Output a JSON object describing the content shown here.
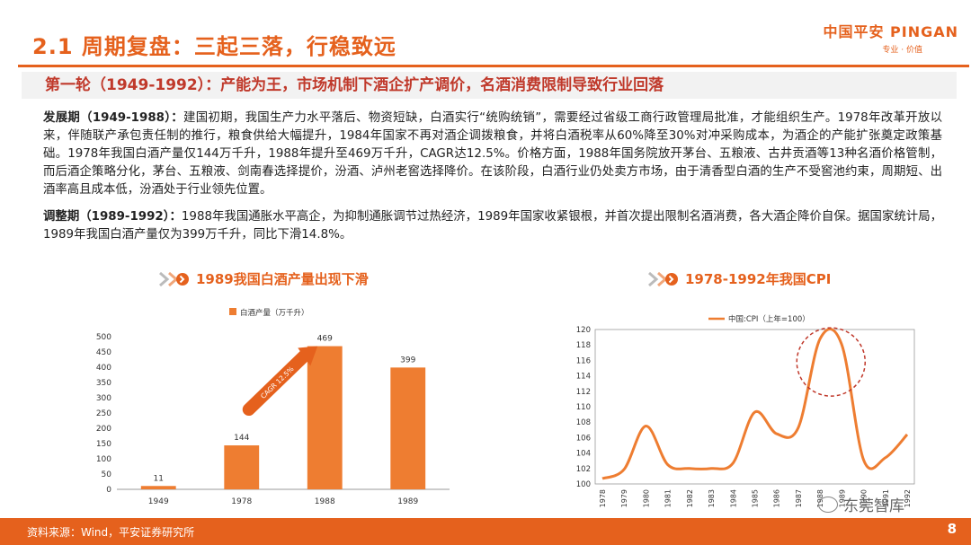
{
  "header": {
    "title": "2.1 周期复盘：三起三落，行稳致远",
    "logo_main": "中国平安 PINGAN",
    "logo_sub": "专业 · 价值"
  },
  "subheading": "第一轮（1949-1992）：产能为王，市场机制下酒企扩产调价，名酒消费限制导致行业回落",
  "paragraphs": {
    "p1_label": "发展期（1949-1988）：",
    "p1_text": "建国初期，我国生产力水平落后、物资短缺，白酒实行“统购统销”，需要经过省级工商行政管理局批准，才能组织生产。1978年改革开放以来，伴随联产承包责任制的推行，粮食供给大幅提升，1984年国家不再对酒企调拨粮食，并将白酒税率从60%降至30%对冲采购成本，为酒企的产能扩张奠定政策基础。1978年我国白酒产量仅144万千升，1988年提升至469万千升，CAGR达12.5%。价格方面，1988年国务院放开茅台、五粮液、古井贡酒等13种名酒价格管制，而后酒企策略分化，茅台、五粮液、剑南春选择提价，汾酒、泸州老窖选择降价。在该阶段，白酒行业仍处卖方市场，由于清香型白酒的生产不受窖池约束，周期短、出酒率高且成本低，汾酒处于行业领先位置。",
    "p2_label": "调整期（1989-1992）：",
    "p2_text": "1988年我国通胀水平高企，为抑制通胀调节过热经济，1989年国家收紧银根，并首次提出限制名酒消费，各大酒企降价自保。据国家统计局，1989年我国白酒产量仅为399万千升，同比下滑14.8%。"
  },
  "chart_data": [
    {
      "type": "bar",
      "title": "1989我国白酒产量出现下滑",
      "legend": "白酒产量（万千升）",
      "categories": [
        "1949",
        "1978",
        "1988",
        "1989"
      ],
      "values": [
        11,
        144,
        469,
        399
      ],
      "yticks": [
        0,
        50,
        100,
        150,
        200,
        250,
        300,
        350,
        400,
        450,
        500
      ],
      "ylim": [
        0,
        500
      ],
      "annotation_arrow": "CAGR 12.5%",
      "color": "#ee7d31"
    },
    {
      "type": "line",
      "title": "1978-1992年我国CPI",
      "legend": "中国:CPI（上年=100）",
      "x": [
        "1978",
        "1979",
        "1980",
        "1981",
        "1982",
        "1983",
        "1984",
        "1985",
        "1986",
        "1987",
        "1988",
        "1989",
        "1990",
        "1991",
        "1992"
      ],
      "values": [
        100.7,
        101.9,
        107.5,
        102.5,
        102.0,
        102.0,
        102.7,
        109.3,
        106.5,
        107.3,
        118.8,
        118.0,
        103.1,
        103.4,
        106.4
      ],
      "yticks": [
        100,
        102,
        104,
        106,
        108,
        110,
        112,
        114,
        116,
        118,
        120
      ],
      "ylim": [
        100,
        120
      ],
      "color": "#ee7d31",
      "highlight": "1988-1989"
    }
  ],
  "footer": {
    "source": "资料来源：Wind，平安证券研究所",
    "page": "8",
    "watermark": "东莞智库"
  }
}
